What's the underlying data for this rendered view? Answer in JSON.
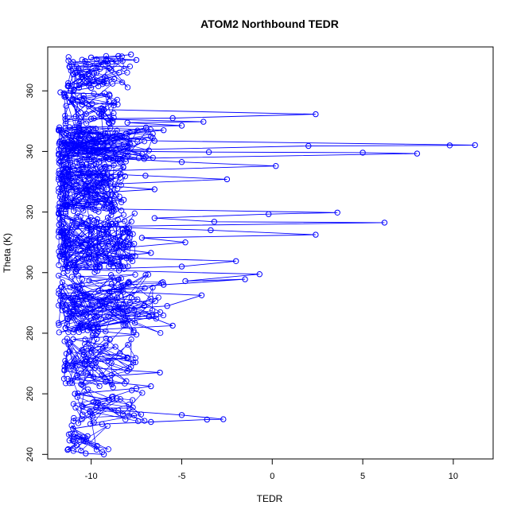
{
  "chart_data": {
    "type": "scatter",
    "title": "ATOM2 Northbound TEDR",
    "xlabel": "TEDR",
    "ylabel": "Theta (K)",
    "xlim": [
      -12.4,
      12.2
    ],
    "ylim": [
      238.5,
      374.5
    ],
    "x_ticks": [
      -10,
      -5,
      0,
      5,
      10
    ],
    "y_ticks": [
      240,
      260,
      280,
      300,
      320,
      340,
      360
    ],
    "grid": false,
    "legend": "none",
    "marker": "open-circle",
    "line": true,
    "color": "#0000ff",
    "series": [
      {
        "points_sampled": [
          [
            -9.3,
            240.0
          ],
          [
            -10.3,
            240.3
          ],
          [
            -11.3,
            241.5
          ],
          [
            -10.8,
            243.0
          ],
          [
            -11.2,
            244.6
          ],
          [
            -10.2,
            246.0
          ],
          [
            -11.0,
            248.5
          ],
          [
            -9.4,
            250.0
          ],
          [
            -6.7,
            250.7
          ],
          [
            -3.6,
            251.5
          ],
          [
            -2.7,
            251.6
          ],
          [
            -5.0,
            253.0
          ],
          [
            -8.5,
            254.5
          ],
          [
            -10.5,
            256.0
          ],
          [
            -9.0,
            258.0
          ],
          [
            -10.9,
            260.0
          ],
          [
            -7.5,
            261.8
          ],
          [
            -6.7,
            262.5
          ],
          [
            -9.2,
            264.0
          ],
          [
            -11.3,
            264.9
          ],
          [
            -6.2,
            267.0
          ],
          [
            -9.8,
            268.5
          ],
          [
            -11.0,
            270.0
          ],
          [
            -8.0,
            272.0
          ],
          [
            -10.5,
            274.5
          ],
          [
            -9.2,
            276.0
          ],
          [
            -11.0,
            278.0
          ],
          [
            -7.5,
            279.5
          ],
          [
            -10.2,
            281.0
          ],
          [
            -5.5,
            282.5
          ],
          [
            -6.8,
            285.5
          ],
          [
            -11.2,
            286.5
          ],
          [
            -8.5,
            288.0
          ],
          [
            -5.8,
            289.0
          ],
          [
            -3.9,
            292.5
          ],
          [
            -9.6,
            294.0
          ],
          [
            -6.0,
            296.0
          ],
          [
            -1.5,
            297.8
          ],
          [
            -4.8,
            297.2
          ],
          [
            -0.7,
            299.5
          ],
          [
            -10.8,
            301.0
          ],
          [
            -5.0,
            302.0
          ],
          [
            -2.0,
            303.8
          ],
          [
            -9.2,
            305.0
          ],
          [
            -6.7,
            306.5
          ],
          [
            -8.6,
            308.0
          ],
          [
            -4.8,
            310.0
          ],
          [
            -7.2,
            311.5
          ],
          [
            2.4,
            312.5
          ],
          [
            -3.4,
            314.0
          ],
          [
            -10.0,
            315.2
          ],
          [
            6.2,
            316.5
          ],
          [
            -3.2,
            316.8
          ],
          [
            -6.5,
            318.0
          ],
          [
            -0.2,
            319.3
          ],
          [
            3.6,
            319.8
          ],
          [
            -8.8,
            321.0
          ],
          [
            -11.3,
            322.5
          ],
          [
            -8.2,
            324.0
          ],
          [
            -10.5,
            326.0
          ],
          [
            -6.5,
            327.5
          ],
          [
            -9.8,
            329.0
          ],
          [
            -2.5,
            330.8
          ],
          [
            -7.0,
            332.0
          ],
          [
            -11.5,
            333.2
          ],
          [
            0.2,
            335.2
          ],
          [
            -5.0,
            336.5
          ],
          [
            -8.5,
            337.6
          ],
          [
            8.0,
            339.3
          ],
          [
            5.0,
            339.6
          ],
          [
            -3.5,
            339.8
          ],
          [
            -10.8,
            340.2
          ],
          [
            2.0,
            341.8
          ],
          [
            9.8,
            342.0
          ],
          [
            11.2,
            342.1
          ],
          [
            -6.5,
            343.5
          ],
          [
            -9.5,
            345.0
          ],
          [
            -6.0,
            347.0
          ],
          [
            -11.2,
            348.0
          ],
          [
            -5.0,
            348.5
          ],
          [
            -8.0,
            349.5
          ],
          [
            -3.8,
            349.8
          ],
          [
            -10.0,
            350.8
          ],
          [
            -5.5,
            351.0
          ],
          [
            2.4,
            352.3
          ],
          [
            -9.3,
            353.8
          ],
          [
            -10.5,
            355.5
          ],
          [
            -11.0,
            357.0
          ],
          [
            -9.0,
            358.8
          ],
          [
            -11.7,
            359.5
          ],
          [
            -10.0,
            361.0
          ],
          [
            -9.3,
            362.8
          ],
          [
            -10.5,
            364.5
          ],
          [
            -10.8,
            366.0
          ],
          [
            -9.0,
            367.5
          ],
          [
            -11.0,
            369.5
          ],
          [
            -7.5,
            370.2
          ],
          [
            -10.0,
            371.0
          ],
          [
            -8.5,
            371.5
          ],
          [
            -7.8,
            372.0
          ]
        ]
      }
    ]
  }
}
